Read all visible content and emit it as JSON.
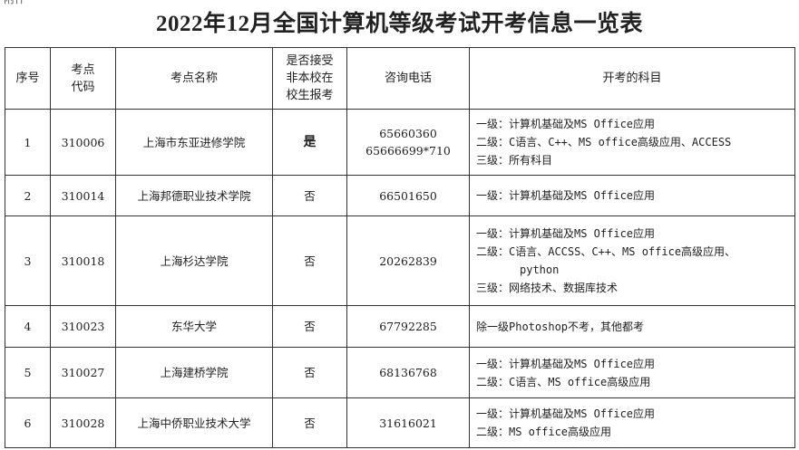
{
  "corner_label": "附件",
  "title": "2022年12月全国计算机等级考试开考信息一览表",
  "headers": {
    "index": "序号",
    "code": [
      "考点",
      "代码"
    ],
    "name": "考点名称",
    "accept": [
      "是否接受",
      "非本校在",
      "校生报考"
    ],
    "phone": "咨询电话",
    "subjects": "开考的科目"
  },
  "rows": [
    {
      "index": "1",
      "code": "310006",
      "name": "上海市东亚进修学院",
      "accept": "是",
      "phone": [
        "65660360",
        "65666699*710"
      ],
      "subjects": [
        "一级：计算机基础及MS Office应用",
        "二级：C语言、C++、MS office高级应用、ACCESS",
        "三级：所有科目"
      ]
    },
    {
      "index": "2",
      "code": "310014",
      "name": "上海邦德职业技术学院",
      "accept": "否",
      "phone": [
        "66501650"
      ],
      "subjects": [
        "一级：计算机基础及MS Office应用"
      ]
    },
    {
      "index": "3",
      "code": "310018",
      "name": "上海杉达学院",
      "accept": "否",
      "phone": [
        "20262839"
      ],
      "subjects": [
        "一级：计算机基础及MS Office应用",
        "二级：C语言、ACCSS、C++、MS office高级应用、",
        "python",
        "三级：网络技术、数据库技术"
      ]
    },
    {
      "index": "4",
      "code": "310023",
      "name": "东华大学",
      "accept": "否",
      "phone": [
        "67792285"
      ],
      "subjects": [
        "除一级Photoshop不考，其他都考"
      ]
    },
    {
      "index": "5",
      "code": "310027",
      "name": "上海建桥学院",
      "accept": "否",
      "phone": [
        "68136768"
      ],
      "subjects": [
        "一级：计算机基础及MS Office应用",
        "二级：C语言、MS office高级应用"
      ]
    },
    {
      "index": "6",
      "code": "310028",
      "name": "上海中侨职业技术大学",
      "accept": "否",
      "phone": [
        "31616021"
      ],
      "subjects": [
        "一级：计算机基础及MS Office应用",
        "二级：MS office高级应用"
      ]
    }
  ]
}
